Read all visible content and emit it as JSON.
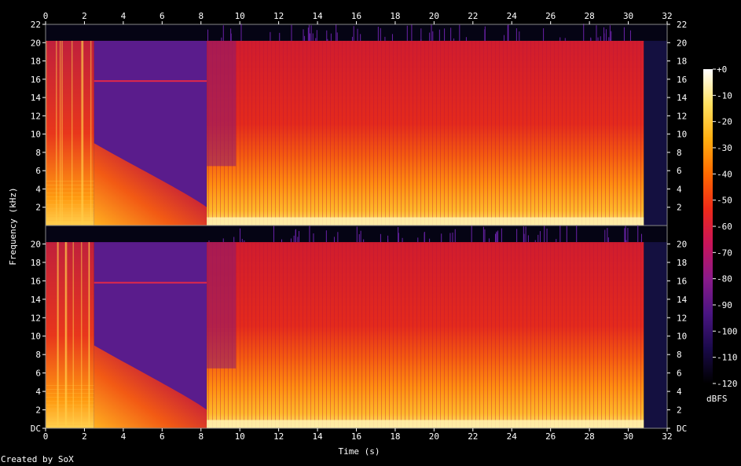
{
  "chart_data": {
    "type": "heatmap",
    "title": "",
    "xlabel": "Time (s)",
    "ylabel": "Frequency (kHz)",
    "xlim": [
      0,
      32
    ],
    "ylim": [
      0,
      22
    ],
    "x_ticks": [
      "0",
      "2",
      "4",
      "6",
      "8",
      "10",
      "12",
      "14",
      "16",
      "18",
      "20",
      "22",
      "24",
      "26",
      "28",
      "30",
      "32"
    ],
    "y_ticks_top": [
      "2",
      "4",
      "6",
      "8",
      "10",
      "12",
      "14",
      "16",
      "18",
      "20",
      "22"
    ],
    "y_ticks_bottom": [
      "DC",
      "2",
      "4",
      "6",
      "8",
      "10",
      "12",
      "14",
      "16",
      "18",
      "20"
    ],
    "channels": 2,
    "colorbar": {
      "label": "dBFS",
      "ticks": [
        "+0",
        "-10",
        "-20",
        "-30",
        "-40",
        "-50",
        "-60",
        "-70",
        "-80",
        "-90",
        "-100",
        "-110",
        "-120"
      ],
      "colors": [
        "#000000",
        "#1a0a4a",
        "#4a1582",
        "#8a1a8a",
        "#c8145a",
        "#ee2a18",
        "#ff6a00",
        "#ffae10",
        "#ffe060",
        "#ffffff"
      ]
    },
    "segments": [
      {
        "start_s": 0.0,
        "end_s": 2.5,
        "content": "speech harmonics, energy up to 20 kHz"
      },
      {
        "start_s": 2.5,
        "end_s": 8.3,
        "content": "decaying noise, faint tone at 15.8 kHz"
      },
      {
        "start_s": 8.3,
        "end_s": 30.8,
        "content": "dense broadband music up to 20 kHz"
      },
      {
        "start_s": 30.8,
        "end_s": 32.0,
        "content": "near silence"
      }
    ],
    "credit": "Created by SoX"
  }
}
